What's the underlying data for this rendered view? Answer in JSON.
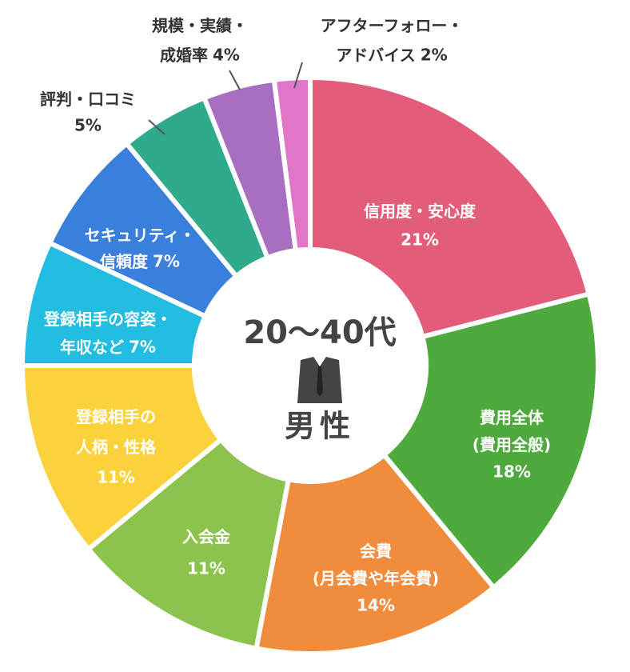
{
  "chart_data": {
    "type": "donut",
    "center_title": "20～40代",
    "center_subtitle": "男性",
    "categories": [
      "信用度・安心度",
      "費用全体\n(費用全般)",
      "会費\n(月会費や年会費)",
      "入会金",
      "登録相手の\n人柄・性格",
      "登録相手の容姿・\n年収など",
      "セキュリティ・\n信頼度",
      "評判・口コミ",
      "規模・実績・\n成婚率",
      "アフターフォロー・\nアドバイス"
    ],
    "values": [
      21,
      18,
      14,
      11,
      11,
      7,
      7,
      5,
      4,
      2
    ],
    "value_labels": [
      "21%",
      "18%",
      "14%",
      "11%",
      "11%",
      "7%",
      "7%",
      "5%",
      "4%",
      "2%"
    ],
    "colors": [
      "#e35d7a",
      "#4faa3e",
      "#f08c3c",
      "#8cc34d",
      "#fcd23c",
      "#22bde0",
      "#3b7fdc",
      "#2fab8c",
      "#a86ebf",
      "#e176c8"
    ]
  }
}
